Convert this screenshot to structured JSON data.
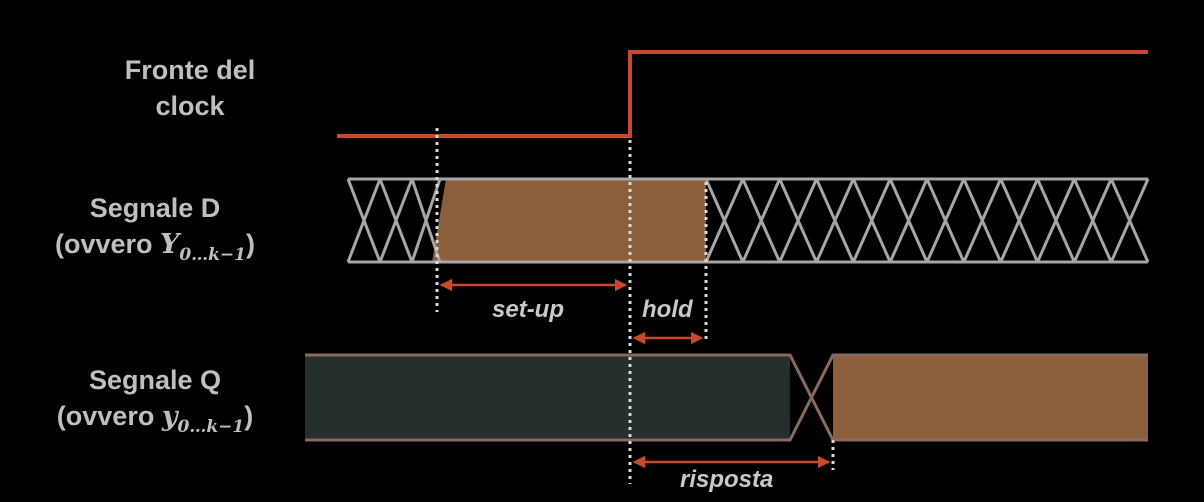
{
  "labels": {
    "clock_line1": "Fronte del",
    "clock_line2": "clock",
    "d_line1": "Segnale D",
    "d_prefix": "(ovvero ",
    "d_var": "Y",
    "d_sub": "0…k−1",
    "d_suffix": ")",
    "q_line1": "Segnale Q",
    "q_prefix": "(ovvero ",
    "q_var": "y",
    "q_sub": "0…k−1",
    "q_suffix": ")"
  },
  "annotations": {
    "setup": "set-up",
    "hold": "hold",
    "response": "risposta"
  },
  "colors": {
    "background": "#000000",
    "clock": "#c8492c",
    "data_fill": "#8b5e3c",
    "bus_line": "#a6a6a6",
    "q_fill": "#262e2e",
    "q_line": "#8a6a60",
    "arrow": "#c8492c",
    "guide": "#d9d9d9"
  }
}
